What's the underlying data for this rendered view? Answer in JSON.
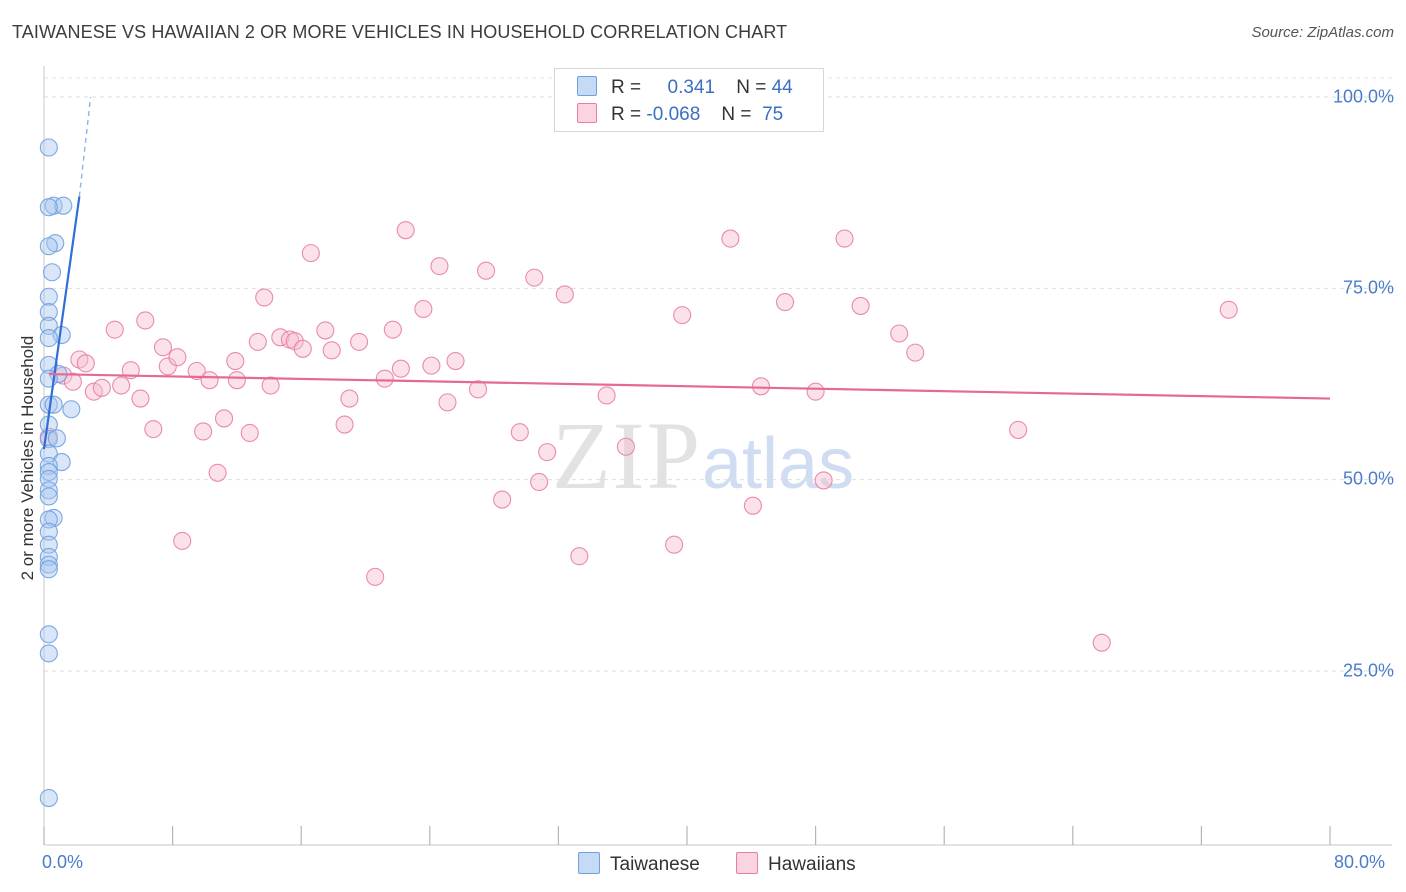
{
  "title": "TAIWANESE VS HAWAIIAN 2 OR MORE VEHICLES IN HOUSEHOLD CORRELATION CHART",
  "source": "Source: ZipAtlas.com",
  "watermark": {
    "zip": "ZIP",
    "atlas": "atlas"
  },
  "stats": [
    {
      "r_label": "R =",
      "r_value": "0.341",
      "n_label": "N =",
      "n_value": "44",
      "color": "#a9c8f0"
    },
    {
      "r_label": "R =",
      "r_value": "-0.068",
      "n_label": "N =",
      "n_value": "75",
      "color": "#f6bcd0"
    }
  ],
  "legend": [
    {
      "label": "Taiwanese",
      "color": "#a9c8f0"
    },
    {
      "label": "Hawaiians",
      "color": "#f6bcd0"
    }
  ],
  "chart_data": {
    "type": "scatter",
    "title": "TAIWANESE VS HAWAIIAN 2 OR MORE VEHICLES IN HOUSEHOLD CORRELATION CHART",
    "xlabel": "",
    "ylabel": "2 or more Vehicles in Household",
    "xlim": [
      0,
      80
    ],
    "ylim": [
      0,
      104
    ],
    "x_tick_labels": [
      "0.0%",
      "80.0%"
    ],
    "y_ticks": [
      25,
      50,
      75,
      100
    ],
    "y_tick_labels": [
      "25.0%",
      "50.0%",
      "75.0%",
      "100.0%"
    ],
    "legend_position": "bottom",
    "series": [
      {
        "name": "Taiwanese",
        "color": "#6fa0e0",
        "fill": "#a9c8f0",
        "trend": {
          "x1": 0,
          "y1": 54.0,
          "x2": 2.2,
          "y2": 87.0
        },
        "trend_dashed": {
          "x1": 2.2,
          "y1": 87.0,
          "x2": 2.9,
          "y2": 100.0
        },
        "points": [
          [
            0.3,
            93.4
          ],
          [
            0.6,
            85.8
          ],
          [
            1.2,
            85.8
          ],
          [
            0.3,
            85.6
          ],
          [
            0.7,
            80.9
          ],
          [
            0.3,
            80.5
          ],
          [
            0.5,
            77.1
          ],
          [
            0.3,
            73.9
          ],
          [
            0.3,
            71.9
          ],
          [
            0.3,
            70.1
          ],
          [
            1.1,
            68.9
          ],
          [
            0.3,
            68.5
          ],
          [
            0.3,
            65.0
          ],
          [
            0.9,
            63.8
          ],
          [
            0.3,
            63.2
          ],
          [
            0.3,
            59.8
          ],
          [
            0.6,
            59.8
          ],
          [
            1.7,
            59.2
          ],
          [
            0.3,
            57.2
          ],
          [
            0.3,
            55.3
          ],
          [
            0.8,
            55.4
          ],
          [
            0.3,
            53.4
          ],
          [
            1.1,
            52.3
          ],
          [
            0.3,
            51.8
          ],
          [
            0.3,
            51.0
          ],
          [
            0.3,
            50.1
          ],
          [
            0.3,
            48.6
          ],
          [
            0.3,
            47.8
          ],
          [
            0.6,
            45.0
          ],
          [
            0.3,
            44.8
          ],
          [
            0.3,
            43.2
          ],
          [
            0.3,
            41.5
          ],
          [
            0.3,
            39.9
          ],
          [
            0.3,
            38.9
          ],
          [
            0.3,
            38.3
          ],
          [
            0.3,
            29.8
          ],
          [
            0.3,
            27.3
          ],
          [
            0.3,
            8.4
          ]
        ]
      },
      {
        "name": "Hawaiians",
        "color": "#e87fa3",
        "fill": "#f6bcd0",
        "trend": {
          "x1": 0.3,
          "y1": 63.8,
          "x2": 80,
          "y2": 60.6
        },
        "points": [
          [
            0.3,
            55.6
          ],
          [
            1.2,
            63.6
          ],
          [
            1.8,
            62.8
          ],
          [
            2.2,
            65.7
          ],
          [
            2.6,
            65.2
          ],
          [
            3.1,
            61.5
          ],
          [
            3.6,
            62.0
          ],
          [
            4.4,
            69.6
          ],
          [
            4.8,
            62.3
          ],
          [
            5.4,
            64.3
          ],
          [
            6.0,
            60.6
          ],
          [
            6.3,
            70.8
          ],
          [
            6.8,
            56.6
          ],
          [
            7.4,
            67.3
          ],
          [
            7.7,
            64.8
          ],
          [
            8.3,
            66.0
          ],
          [
            8.6,
            42.0
          ],
          [
            9.5,
            64.2
          ],
          [
            9.9,
            56.3
          ],
          [
            10.3,
            63.0
          ],
          [
            10.8,
            50.9
          ],
          [
            11.2,
            58.0
          ],
          [
            11.9,
            65.5
          ],
          [
            12.0,
            63.0
          ],
          [
            12.8,
            56.1
          ],
          [
            13.3,
            68.0
          ],
          [
            13.7,
            73.8
          ],
          [
            14.1,
            62.3
          ],
          [
            14.7,
            68.6
          ],
          [
            15.3,
            68.3
          ],
          [
            15.6,
            68.1
          ],
          [
            16.1,
            67.1
          ],
          [
            16.6,
            79.6
          ],
          [
            17.5,
            69.5
          ],
          [
            17.9,
            66.9
          ],
          [
            18.7,
            57.2
          ],
          [
            19.0,
            60.6
          ],
          [
            19.6,
            68.0
          ],
          [
            20.6,
            37.3
          ],
          [
            21.2,
            63.2
          ],
          [
            21.7,
            69.6
          ],
          [
            22.2,
            64.5
          ],
          [
            22.5,
            82.6
          ],
          [
            23.6,
            72.3
          ],
          [
            24.1,
            64.9
          ],
          [
            24.6,
            77.9
          ],
          [
            25.1,
            60.1
          ],
          [
            25.6,
            65.5
          ],
          [
            27.0,
            61.8
          ],
          [
            27.5,
            77.3
          ],
          [
            28.5,
            47.4
          ],
          [
            29.6,
            56.2
          ],
          [
            30.5,
            76.4
          ],
          [
            30.8,
            49.7
          ],
          [
            31.3,
            53.6
          ],
          [
            32.4,
            74.2
          ],
          [
            33.3,
            40.0
          ],
          [
            35.0,
            61.0
          ],
          [
            36.2,
            54.3
          ],
          [
            39.2,
            41.5
          ],
          [
            39.7,
            71.5
          ],
          [
            42.7,
            81.5
          ],
          [
            44.1,
            46.6
          ],
          [
            44.6,
            62.2
          ],
          [
            46.1,
            73.2
          ],
          [
            48.0,
            61.5
          ],
          [
            48.5,
            49.9
          ],
          [
            49.8,
            81.5
          ],
          [
            50.8,
            72.7
          ],
          [
            53.2,
            69.1
          ],
          [
            54.2,
            66.6
          ],
          [
            60.6,
            56.5
          ],
          [
            65.8,
            28.7
          ],
          [
            73.7,
            72.2
          ]
        ]
      }
    ]
  }
}
